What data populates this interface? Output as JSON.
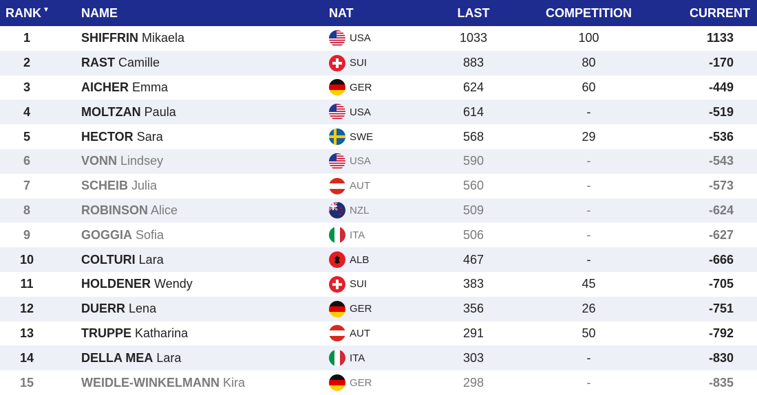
{
  "header": {
    "rank": "RANK",
    "name": "NAME",
    "nat": "NAT",
    "last": "LAST",
    "competition": "COMPETITION",
    "current": "CURRENT",
    "sort_icon": "sort-down-icon"
  },
  "colors": {
    "header_bg": "#1e2b8f",
    "row_alt_bg": "#eef0f8",
    "dim_text": "#7a7a7a"
  },
  "rows": [
    {
      "rank": "1",
      "last_name": "SHIFFRIN",
      "first_name": "Mikaela",
      "nat": "USA",
      "last": "1033",
      "competition": "100",
      "current": "1133",
      "dim": false
    },
    {
      "rank": "2",
      "last_name": "RAST",
      "first_name": "Camille",
      "nat": "SUI",
      "last": "883",
      "competition": "80",
      "current": "-170",
      "dim": false
    },
    {
      "rank": "3",
      "last_name": "AICHER",
      "first_name": "Emma",
      "nat": "GER",
      "last": "624",
      "competition": "60",
      "current": "-449",
      "dim": false
    },
    {
      "rank": "4",
      "last_name": "MOLTZAN",
      "first_name": "Paula",
      "nat": "USA",
      "last": "614",
      "competition": "-",
      "current": "-519",
      "dim": false
    },
    {
      "rank": "5",
      "last_name": "HECTOR",
      "first_name": "Sara",
      "nat": "SWE",
      "last": "568",
      "competition": "29",
      "current": "-536",
      "dim": false
    },
    {
      "rank": "6",
      "last_name": "VONN",
      "first_name": "Lindsey",
      "nat": "USA",
      "last": "590",
      "competition": "-",
      "current": "-543",
      "dim": true
    },
    {
      "rank": "7",
      "last_name": "SCHEIB",
      "first_name": "Julia",
      "nat": "AUT",
      "last": "560",
      "competition": "-",
      "current": "-573",
      "dim": true
    },
    {
      "rank": "8",
      "last_name": "ROBINSON",
      "first_name": "Alice",
      "nat": "NZL",
      "last": "509",
      "competition": "-",
      "current": "-624",
      "dim": true
    },
    {
      "rank": "9",
      "last_name": "GOGGIA",
      "first_name": "Sofia",
      "nat": "ITA",
      "last": "506",
      "competition": "-",
      "current": "-627",
      "dim": true
    },
    {
      "rank": "10",
      "last_name": "COLTURI",
      "first_name": "Lara",
      "nat": "ALB",
      "last": "467",
      "competition": "-",
      "current": "-666",
      "dim": false
    },
    {
      "rank": "11",
      "last_name": "HOLDENER",
      "first_name": "Wendy",
      "nat": "SUI",
      "last": "383",
      "competition": "45",
      "current": "-705",
      "dim": false
    },
    {
      "rank": "12",
      "last_name": "DUERR",
      "first_name": "Lena",
      "nat": "GER",
      "last": "356",
      "competition": "26",
      "current": "-751",
      "dim": false
    },
    {
      "rank": "13",
      "last_name": "TRUPPE",
      "first_name": "Katharina",
      "nat": "AUT",
      "last": "291",
      "competition": "50",
      "current": "-792",
      "dim": false
    },
    {
      "rank": "14",
      "last_name": "DELLA MEA",
      "first_name": "Lara",
      "nat": "ITA",
      "last": "303",
      "competition": "-",
      "current": "-830",
      "dim": false
    },
    {
      "rank": "15",
      "last_name": "WEIDLE-WINKELMANN",
      "first_name": "Kira",
      "nat": "GER",
      "last": "298",
      "competition": "-",
      "current": "-835",
      "dim": true
    }
  ]
}
